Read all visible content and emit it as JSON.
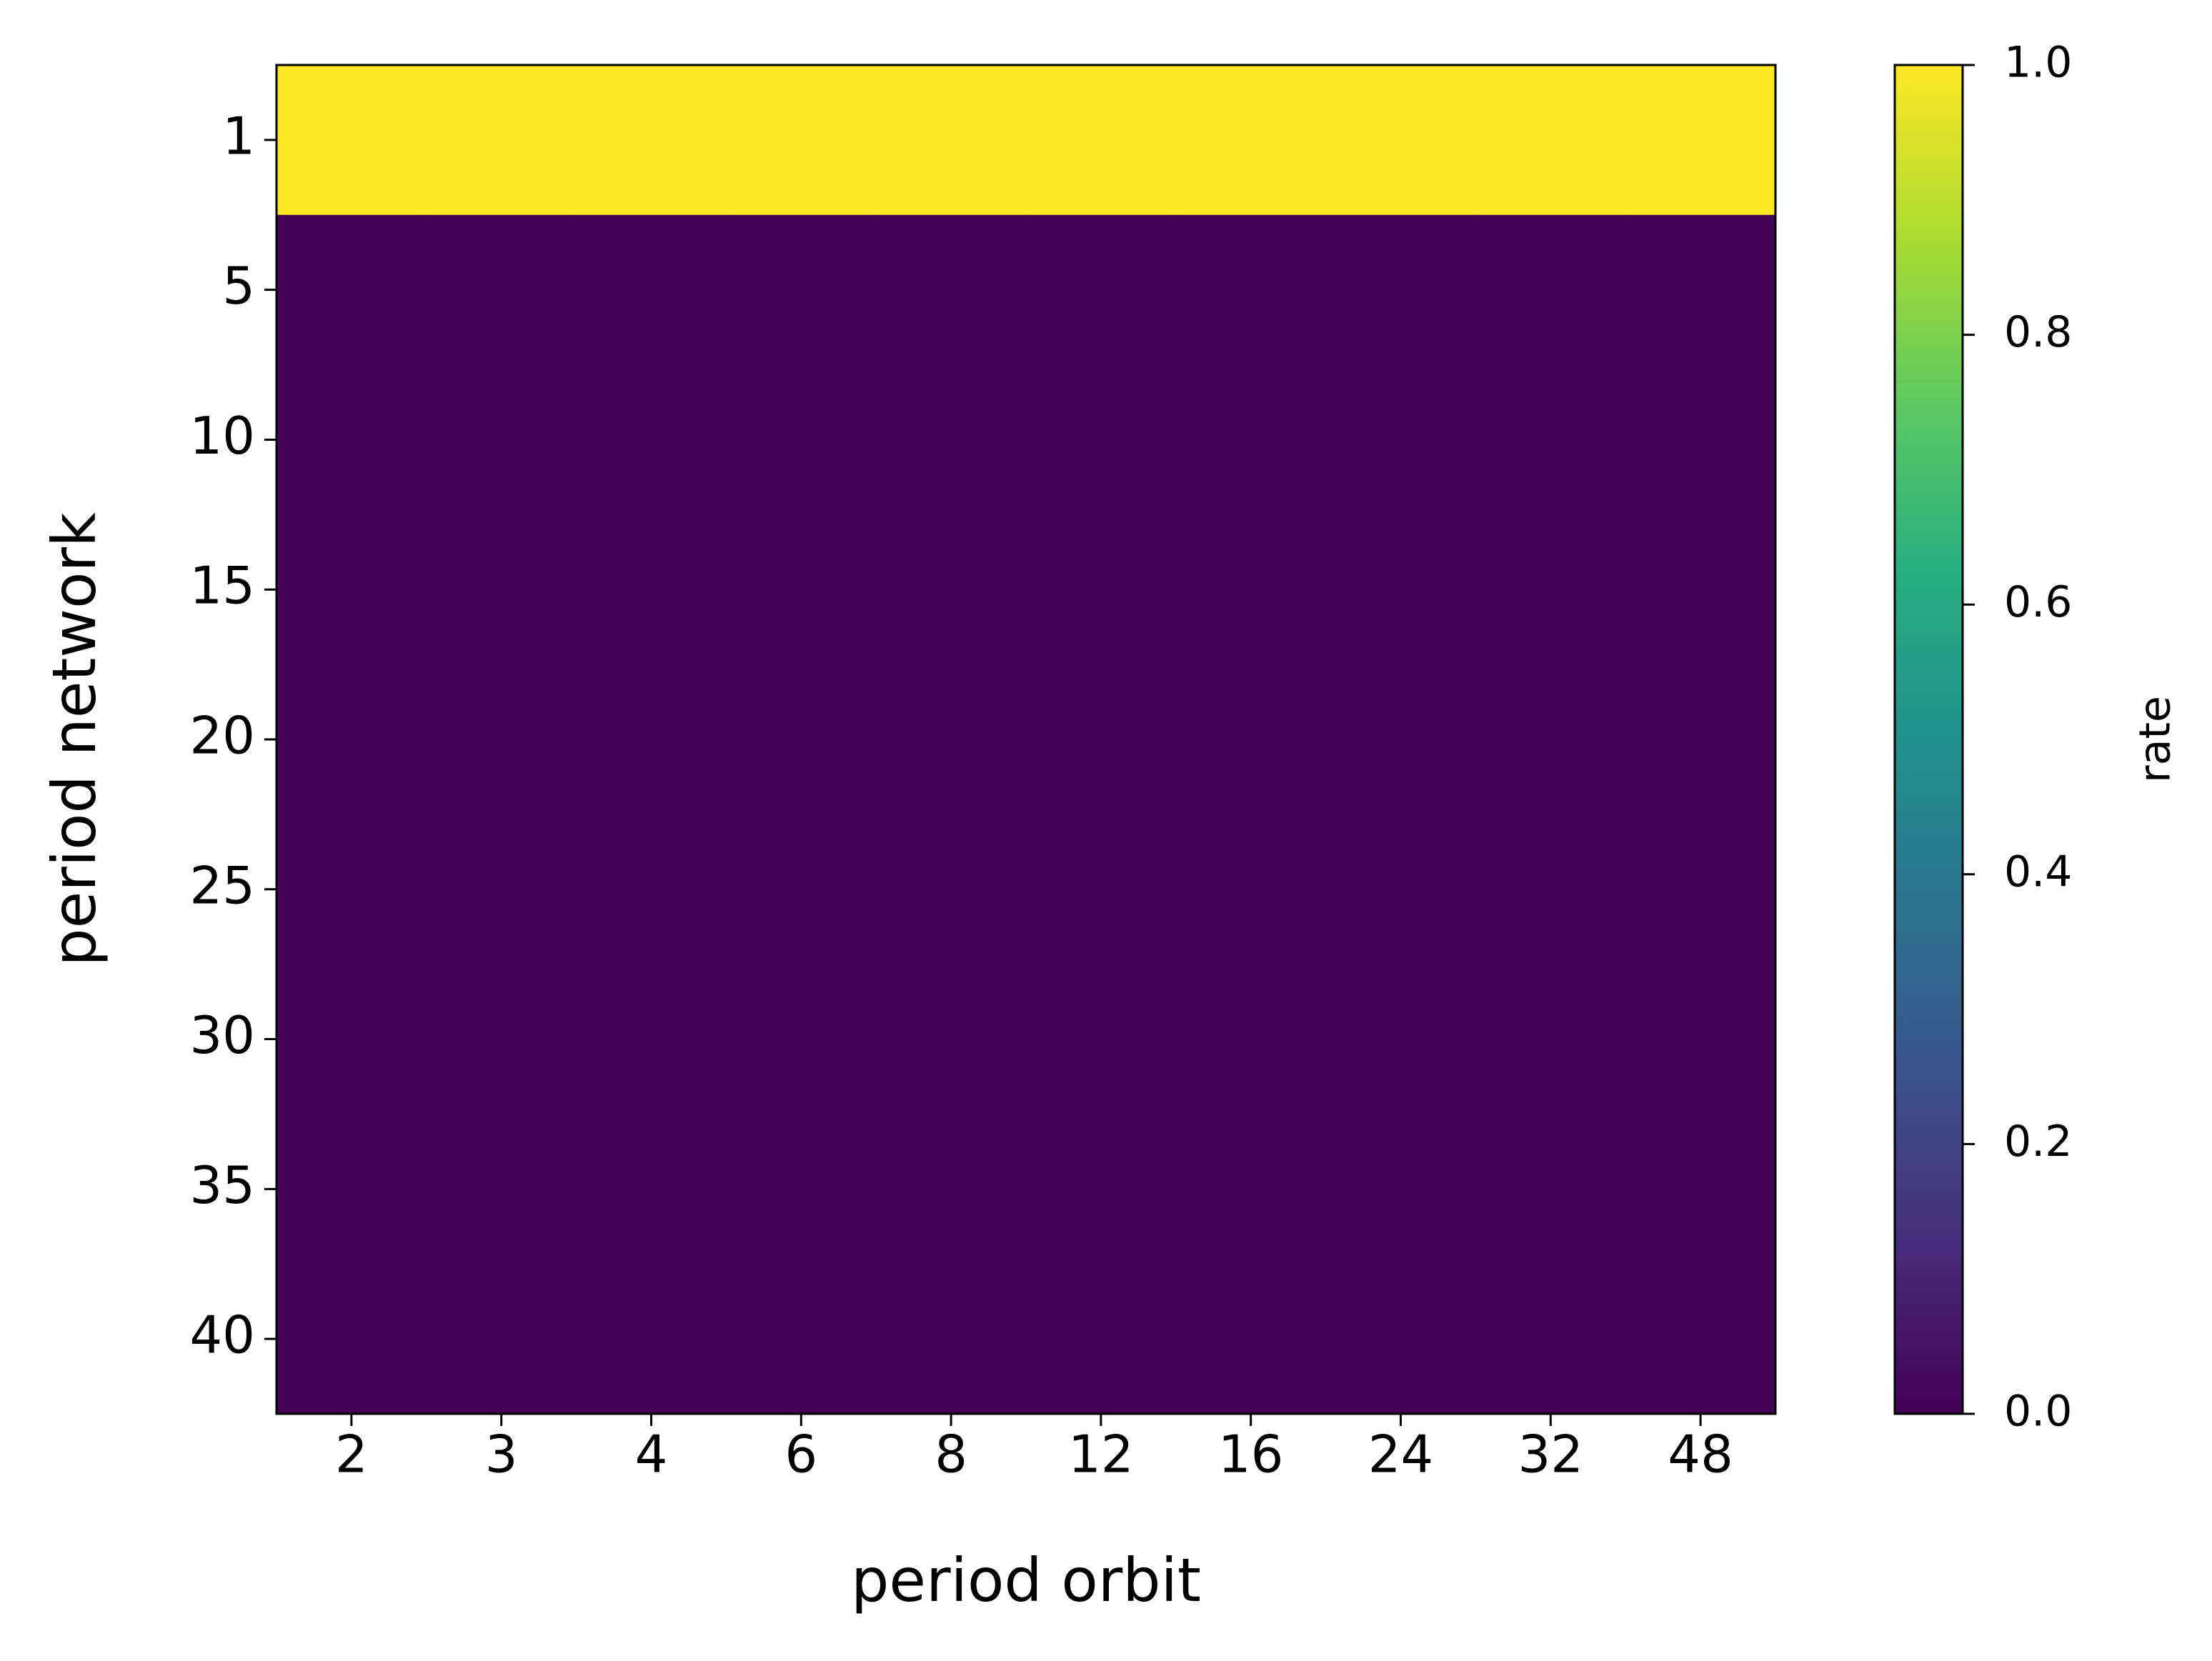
{
  "chart_data": {
    "type": "heatmap",
    "x_label": "period orbit",
    "y_label": "period network",
    "x_categories": [
      "2",
      "3",
      "4",
      "6",
      "8",
      "12",
      "16",
      "24",
      "32",
      "48"
    ],
    "y_categories": [
      "1",
      "5",
      "10",
      "15",
      "20",
      "25",
      "30",
      "35",
      "40"
    ],
    "values": [
      [
        1,
        1,
        1,
        1,
        1,
        1,
        1,
        1,
        1,
        1
      ],
      [
        0,
        0,
        0,
        0,
        0,
        0,
        0,
        0,
        0,
        0
      ],
      [
        0,
        0,
        0,
        0,
        0,
        0,
        0,
        0,
        0,
        0
      ],
      [
        0,
        0,
        0,
        0,
        0,
        0,
        0,
        0,
        0,
        0
      ],
      [
        0,
        0,
        0,
        0,
        0,
        0,
        0,
        0,
        0,
        0
      ],
      [
        0,
        0,
        0,
        0,
        0,
        0,
        0,
        0,
        0,
        0
      ],
      [
        0,
        0,
        0,
        0,
        0,
        0,
        0,
        0,
        0,
        0
      ],
      [
        0,
        0,
        0,
        0,
        0,
        0,
        0,
        0,
        0,
        0
      ],
      [
        0,
        0,
        0,
        0,
        0,
        0,
        0,
        0,
        0,
        0
      ]
    ],
    "colormap": "viridis",
    "colorbar_label": "rate",
    "clim": [
      0,
      1
    ],
    "cticks": [
      {
        "value": 0,
        "label": "0.0"
      },
      {
        "value": 0.2,
        "label": "0.2"
      },
      {
        "value": 0.4,
        "label": "0.4"
      },
      {
        "value": 0.6,
        "label": "0.6"
      },
      {
        "value": 0.8,
        "label": "0.8"
      },
      {
        "value": 1,
        "label": "1.0"
      }
    ]
  }
}
